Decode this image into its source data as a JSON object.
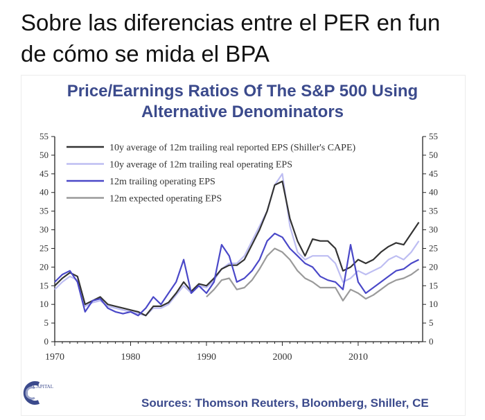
{
  "page": {
    "heading_line1": "Sobre las diferencias entre el PER en fun",
    "heading_line2": "de cómo se mida el BPA"
  },
  "chart_data": {
    "type": "line",
    "title_line1": "Price/Earnings Ratios Of The S&P 500 Using",
    "title_line2": "Alternative Denominators",
    "xlabel": "",
    "ylabel": "",
    "xlim": [
      1970,
      2018.5
    ],
    "ylim": [
      0,
      55
    ],
    "x_ticks": [
      1970,
      1980,
      1990,
      2000,
      2010
    ],
    "y_ticks": [
      0,
      5,
      10,
      15,
      20,
      25,
      30,
      35,
      40,
      45,
      50,
      55
    ],
    "grid": false,
    "legend_position": "top-left",
    "source": "Sources: Thomson Reuters, Bloomberg, Shiller, CE",
    "logo_text": "CAPITAL",
    "series": [
      {
        "name": "10y average of 12m trailing real reported EPS (Shiller's CAPE)",
        "color": "#333333",
        "points": [
          [
            1970,
            15
          ],
          [
            1971,
            17
          ],
          [
            1972,
            18.5
          ],
          [
            1973,
            17.5
          ],
          [
            1974,
            10
          ],
          [
            1975,
            11
          ],
          [
            1976,
            12
          ],
          [
            1977,
            10
          ],
          [
            1978,
            9.5
          ],
          [
            1979,
            9
          ],
          [
            1980,
            8.5
          ],
          [
            1981,
            8
          ],
          [
            1982,
            7
          ],
          [
            1983,
            9.5
          ],
          [
            1984,
            9.5
          ],
          [
            1985,
            10.5
          ],
          [
            1986,
            13
          ],
          [
            1987,
            16
          ],
          [
            1988,
            13.5
          ],
          [
            1989,
            15.5
          ],
          [
            1990,
            15
          ],
          [
            1991,
            17
          ],
          [
            1992,
            19.5
          ],
          [
            1993,
            20.5
          ],
          [
            1994,
            20.5
          ],
          [
            1995,
            22
          ],
          [
            1996,
            26
          ],
          [
            1997,
            30
          ],
          [
            1998,
            35
          ],
          [
            1999,
            42
          ],
          [
            2000,
            43
          ],
          [
            2001,
            33
          ],
          [
            2002,
            27
          ],
          [
            2003,
            23
          ],
          [
            2004,
            27.5
          ],
          [
            2005,
            27
          ],
          [
            2006,
            27
          ],
          [
            2007,
            25
          ],
          [
            2008,
            19
          ],
          [
            2009,
            20
          ],
          [
            2010,
            22
          ],
          [
            2011,
            21
          ],
          [
            2012,
            22
          ],
          [
            2013,
            24
          ],
          [
            2014,
            25.5
          ],
          [
            2015,
            26.5
          ],
          [
            2016,
            26
          ],
          [
            2017,
            29
          ],
          [
            2018,
            32
          ]
        ]
      },
      {
        "name": "10y average of 12m trailing real operating EPS",
        "color": "#bdbdf2",
        "points": [
          [
            1970,
            14
          ],
          [
            1971,
            16
          ],
          [
            1972,
            17.5
          ],
          [
            1973,
            16.5
          ],
          [
            1974,
            9.5
          ],
          [
            1975,
            10.5
          ],
          [
            1976,
            11
          ],
          [
            1977,
            9.5
          ],
          [
            1978,
            9
          ],
          [
            1979,
            8.5
          ],
          [
            1980,
            8
          ],
          [
            1981,
            7.5
          ],
          [
            1982,
            7
          ],
          [
            1983,
            9
          ],
          [
            1984,
            9
          ],
          [
            1985,
            10
          ],
          [
            1986,
            12.5
          ],
          [
            1987,
            15
          ],
          [
            1988,
            13
          ],
          [
            1989,
            15
          ],
          [
            1990,
            14.5
          ],
          [
            1991,
            16.5
          ],
          [
            1992,
            19.5
          ],
          [
            1993,
            21
          ],
          [
            1994,
            21
          ],
          [
            1995,
            23
          ],
          [
            1996,
            27
          ],
          [
            1997,
            31
          ],
          [
            1998,
            35
          ],
          [
            1999,
            42
          ],
          [
            2000,
            45
          ],
          [
            2001,
            31
          ],
          [
            2002,
            24
          ],
          [
            2003,
            22
          ],
          [
            2004,
            23
          ],
          [
            2005,
            23
          ],
          [
            2006,
            23
          ],
          [
            2007,
            21
          ],
          [
            2008,
            16
          ],
          [
            2009,
            17
          ],
          [
            2010,
            19
          ],
          [
            2011,
            18
          ],
          [
            2012,
            19
          ],
          [
            2013,
            20
          ],
          [
            2014,
            22
          ],
          [
            2015,
            23
          ],
          [
            2016,
            22
          ],
          [
            2017,
            24
          ],
          [
            2018,
            27
          ]
        ]
      },
      {
        "name": "12m trailing operating EPS",
        "color": "#4a48c8",
        "points": [
          [
            1970,
            16
          ],
          [
            1971,
            18
          ],
          [
            1972,
            19
          ],
          [
            1973,
            16
          ],
          [
            1974,
            8
          ],
          [
            1975,
            11
          ],
          [
            1976,
            11.5
          ],
          [
            1977,
            9
          ],
          [
            1978,
            8
          ],
          [
            1979,
            7.5
          ],
          [
            1980,
            8
          ],
          [
            1981,
            7
          ],
          [
            1982,
            9
          ],
          [
            1983,
            12
          ],
          [
            1984,
            10
          ],
          [
            1985,
            13
          ],
          [
            1986,
            16
          ],
          [
            1987,
            22
          ],
          [
            1988,
            13
          ],
          [
            1989,
            15
          ],
          [
            1990,
            13
          ],
          [
            1991,
            16
          ],
          [
            1992,
            26
          ],
          [
            1993,
            23
          ],
          [
            1994,
            16
          ],
          [
            1995,
            17
          ],
          [
            1996,
            19
          ],
          [
            1997,
            22
          ],
          [
            1998,
            27
          ],
          [
            1999,
            29
          ],
          [
            2000,
            28
          ],
          [
            2001,
            25
          ],
          [
            2002,
            23
          ],
          [
            2003,
            21
          ],
          [
            2004,
            20
          ],
          [
            2005,
            17.5
          ],
          [
            2006,
            16.5
          ],
          [
            2007,
            16
          ],
          [
            2008,
            14
          ],
          [
            2009,
            26
          ],
          [
            2010,
            16
          ],
          [
            2011,
            13
          ],
          [
            2012,
            14.5
          ],
          [
            2013,
            16
          ],
          [
            2014,
            17.5
          ],
          [
            2015,
            19
          ],
          [
            2016,
            19.5
          ],
          [
            2017,
            21
          ],
          [
            2018,
            22
          ]
        ]
      },
      {
        "name": "12m expected operating EPS",
        "color": "#9a9a9a",
        "points": [
          [
            1990,
            12
          ],
          [
            1991,
            14
          ],
          [
            1992,
            16.5
          ],
          [
            1993,
            17
          ],
          [
            1994,
            14
          ],
          [
            1995,
            14.5
          ],
          [
            1996,
            16.5
          ],
          [
            1997,
            19.5
          ],
          [
            1998,
            23
          ],
          [
            1999,
            25
          ],
          [
            2000,
            24
          ],
          [
            2001,
            22
          ],
          [
            2002,
            19
          ],
          [
            2003,
            17
          ],
          [
            2004,
            16
          ],
          [
            2005,
            14.5
          ],
          [
            2006,
            14.5
          ],
          [
            2007,
            14.5
          ],
          [
            2008,
            11
          ],
          [
            2009,
            14
          ],
          [
            2010,
            13
          ],
          [
            2011,
            11.5
          ],
          [
            2012,
            12.5
          ],
          [
            2013,
            14
          ],
          [
            2014,
            15.5
          ],
          [
            2015,
            16.5
          ],
          [
            2016,
            17
          ],
          [
            2017,
            18
          ],
          [
            2018,
            19.5
          ]
        ]
      }
    ]
  }
}
